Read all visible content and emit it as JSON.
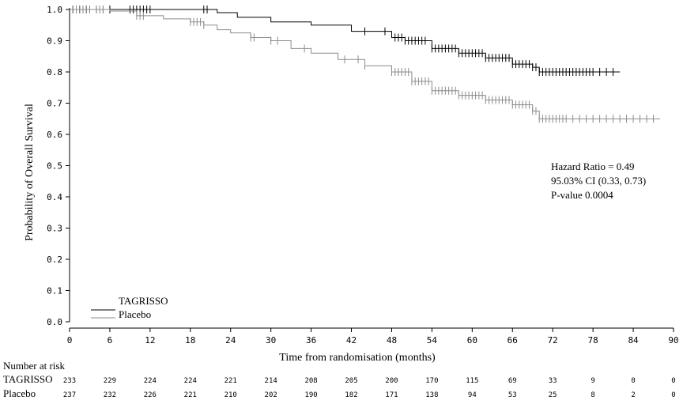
{
  "chart_data": {
    "type": "line",
    "title": "",
    "xlabel": "Time from randomisation (months)",
    "ylabel": "Probability of Overall Survival",
    "xlim": [
      0,
      90
    ],
    "ylim": [
      0,
      1.0
    ],
    "xticks": [
      0,
      6,
      12,
      18,
      24,
      30,
      36,
      42,
      48,
      54,
      60,
      66,
      72,
      78,
      84,
      90
    ],
    "yticks": [
      "0.0",
      "0.1",
      "0.2",
      "0.3",
      "0.4",
      "0.5",
      "0.6",
      "0.7",
      "0.8",
      "0.9",
      "1.0"
    ],
    "grid": false,
    "legend_position": "bottom-left",
    "series": [
      {
        "name": "TAGRISSO",
        "color": "#000000",
        "x": [
          0,
          20,
          22,
          25,
          30,
          36,
          42,
          48,
          50,
          54,
          58,
          62,
          66,
          69,
          70,
          72,
          82
        ],
        "y": [
          1.0,
          1.0,
          0.99,
          0.975,
          0.96,
          0.95,
          0.93,
          0.91,
          0.9,
          0.875,
          0.86,
          0.845,
          0.825,
          0.815,
          0.8,
          0.8,
          0.8
        ],
        "censor_x": [
          0.5,
          1,
          1.5,
          2,
          2.5,
          3,
          4,
          5,
          6,
          9,
          9.5,
          10,
          10.5,
          11,
          11.5,
          12,
          20,
          20.5,
          44,
          47,
          48.5,
          49,
          49.5,
          50,
          50.5,
          51,
          51.5,
          52,
          52.5,
          53,
          54,
          54.5,
          55,
          55.5,
          56,
          56.5,
          57,
          57.5,
          58,
          58.5,
          59,
          59.5,
          60,
          60.5,
          61,
          61.5,
          62,
          62.5,
          63,
          63.5,
          64,
          64.5,
          65,
          65.5,
          66,
          66.5,
          67,
          67.5,
          68,
          68.5,
          69,
          69.5,
          70,
          70.5,
          71,
          71.5,
          72,
          72.5,
          73,
          73.5,
          74,
          74.5,
          75,
          75.5,
          76,
          76.5,
          77,
          77.5,
          78,
          79,
          80,
          81
        ]
      },
      {
        "name": "Placebo",
        "color": "#8c8c8c",
        "x": [
          0,
          6,
          10,
          14,
          18,
          20,
          22,
          24,
          27,
          30,
          33,
          36,
          40,
          44,
          48,
          51,
          54,
          58,
          62,
          66,
          69,
          70,
          88
        ],
        "y": [
          1.0,
          0.995,
          0.98,
          0.97,
          0.96,
          0.95,
          0.935,
          0.925,
          0.91,
          0.9,
          0.875,
          0.86,
          0.84,
          0.82,
          0.8,
          0.77,
          0.74,
          0.725,
          0.71,
          0.695,
          0.675,
          0.65,
          0.65
        ],
        "censor_x": [
          0.5,
          1,
          1.5,
          2,
          2.5,
          3,
          4,
          4.5,
          5,
          10,
          10.5,
          11,
          18,
          18.5,
          19,
          19.5,
          20,
          27,
          27.5,
          30,
          31,
          35,
          41,
          43,
          44,
          48,
          48.5,
          49,
          49.5,
          50,
          50.5,
          51,
          51.5,
          52,
          52.5,
          53,
          53.5,
          54,
          54.5,
          55,
          55.5,
          56,
          56.5,
          57,
          57.5,
          58,
          58.5,
          59,
          59.5,
          60,
          60.5,
          61,
          61.5,
          62,
          62.5,
          63,
          63.5,
          64,
          64.5,
          65,
          65.5,
          66,
          66.5,
          67,
          67.5,
          68,
          68.5,
          69,
          69.5,
          70,
          70.5,
          71,
          71.5,
          72,
          72.5,
          73,
          73.5,
          74,
          75,
          76,
          77,
          78,
          79,
          80,
          81,
          82,
          83,
          84,
          85,
          86,
          87
        ]
      }
    ],
    "annotations": [
      "Hazard Ratio = 0.49",
      "95.03% CI (0.33, 0.73)",
      "P-value 0.0004"
    ]
  },
  "risk_table": {
    "heading": "Number at risk",
    "rows": [
      {
        "label": "TAGRISSO",
        "counts": [
          233,
          229,
          224,
          224,
          221,
          214,
          208,
          205,
          200,
          170,
          115,
          69,
          33,
          9,
          0,
          0
        ]
      },
      {
        "label": "Placebo",
        "counts": [
          237,
          232,
          226,
          221,
          210,
          202,
          190,
          182,
          171,
          138,
          94,
          53,
          25,
          8,
          2,
          0
        ]
      }
    ]
  }
}
